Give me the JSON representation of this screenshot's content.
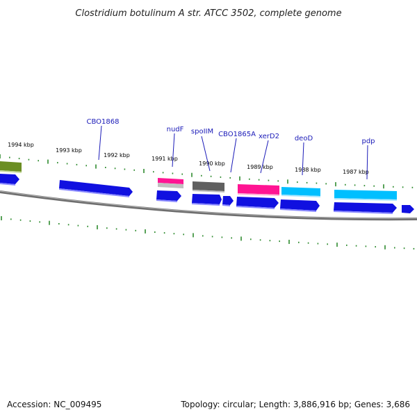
{
  "title": "Clostridium botulinum A str. ATCC 3502, complete genome",
  "footer": {
    "accession": "Accession: NC_009495",
    "summary": "Topology: circular; Length: 3,886,916 bp; Genes: 3,686"
  },
  "kbp_labels": [
    "1994 kbp",
    "1993 kbp",
    "1992 kbp",
    "1991 kbp",
    "1990 kbp",
    "1989 kbp",
    "1988 kbp",
    "1987 kbp"
  ],
  "gene_labels": [
    "CBO1868",
    "nudF",
    "spoIIM",
    "CBO1865A",
    "xerD2",
    "deoD",
    "pdp"
  ],
  "colors": {
    "backbone": "#7a7a7a",
    "tick": "#2e8b2e",
    "gene_blue": "#1010e0",
    "gene_pink": "#ff1493",
    "gene_cyan": "#00bfff",
    "gene_gray": "#606060",
    "gene_olive": "#6b8e23",
    "label": "#1a1ab8"
  }
}
